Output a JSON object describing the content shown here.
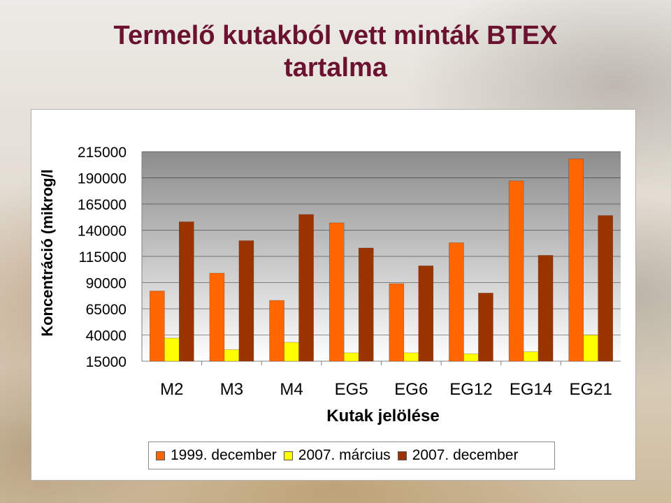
{
  "page": {
    "title_line1": "Termelő kutakból vett minták BTEX",
    "title_line2": "tartalma"
  },
  "chart_data": {
    "type": "bar",
    "title": "Termelő kutakból vett minták BTEX tartalma",
    "xlabel": "Kutak jelölése",
    "ylabel": "Koncentráció (mikrog/l",
    "categories": [
      "M2",
      "M3",
      "M4",
      "EG5",
      "EG6",
      "EG12",
      "EG14",
      "EG21"
    ],
    "yticks": [
      15000,
      40000,
      65000,
      90000,
      115000,
      140000,
      165000,
      190000,
      215000
    ],
    "ylim": [
      15000,
      215000
    ],
    "grid": true,
    "legend_position": "bottom",
    "series": [
      {
        "name": "1999. december",
        "color": "#ff6600",
        "values": [
          82000,
          99000,
          73000,
          147000,
          89000,
          128000,
          187000,
          208000
        ]
      },
      {
        "name": "2007. március",
        "color": "#ffff00",
        "values": [
          37000,
          26000,
          33000,
          23000,
          23000,
          22000,
          24000,
          40000
        ]
      },
      {
        "name": "2007. december",
        "color": "#993300",
        "values": [
          148000,
          130000,
          155000,
          123000,
          106000,
          80000,
          116000,
          154000
        ]
      }
    ]
  }
}
